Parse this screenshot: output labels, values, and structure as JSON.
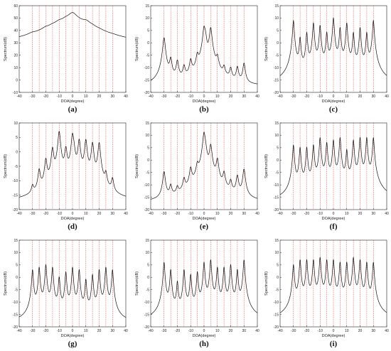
{
  "figure": {
    "xlabel": "DOA(degree)",
    "ylabel": "Spectrum(dB)",
    "true_doas": [
      -30,
      -25,
      -20,
      -15,
      -10,
      -5,
      0,
      5,
      10,
      15,
      20,
      25,
      30
    ]
  },
  "chart_data": [
    {
      "label": "(a)",
      "type": "line",
      "xlim": [
        -40,
        40
      ],
      "ylim": [
        -10,
        60
      ],
      "xticks": [
        -40,
        -30,
        -20,
        -10,
        0,
        10,
        20,
        30,
        40
      ],
      "yticks": [
        -10,
        0,
        10,
        20,
        30,
        40,
        50,
        60
      ],
      "baseline": -10,
      "peak_width": 3.2,
      "peaks": [
        {
          "x": -30,
          "y": 32
        },
        {
          "x": -25,
          "y": 27
        },
        {
          "x": -20,
          "y": 38
        },
        {
          "x": -15,
          "y": 40
        },
        {
          "x": -10,
          "y": 45
        },
        {
          "x": -5,
          "y": 47
        },
        {
          "x": 0,
          "y": 54
        },
        {
          "x": 5,
          "y": 43
        },
        {
          "x": 10,
          "y": 46
        },
        {
          "x": 15,
          "y": 38
        },
        {
          "x": 20,
          "y": 33
        },
        {
          "x": 25,
          "y": 26
        },
        {
          "x": 30,
          "y": 26
        }
      ]
    },
    {
      "label": "(b)",
      "type": "line",
      "xlim": [
        -40,
        40
      ],
      "ylim": [
        -20,
        15
      ],
      "xticks": [
        -40,
        -30,
        -20,
        -10,
        0,
        10,
        20,
        30,
        40
      ],
      "yticks": [
        -20,
        -15,
        -10,
        -5,
        0,
        5,
        10,
        15
      ],
      "baseline": -18,
      "peak_width": 0.8,
      "peaks": [
        {
          "x": -30,
          "y": 2
        },
        {
          "x": -25,
          "y": -7
        },
        {
          "x": -20,
          "y": -8
        },
        {
          "x": -15,
          "y": -11
        },
        {
          "x": -10,
          "y": -8
        },
        {
          "x": -5,
          "y": -6
        },
        {
          "x": 0,
          "y": 6
        },
        {
          "x": 1,
          "y": 2
        },
        {
          "x": 5,
          "y": 6
        },
        {
          "x": 10,
          "y": -7
        },
        {
          "x": 15,
          "y": -12
        },
        {
          "x": 20,
          "y": -12
        },
        {
          "x": 25,
          "y": -11
        },
        {
          "x": 30,
          "y": -9
        }
      ]
    },
    {
      "label": "(c)",
      "type": "line",
      "xlim": [
        -40,
        40
      ],
      "ylim": [
        -20,
        15
      ],
      "xticks": [
        -40,
        -30,
        -20,
        -10,
        0,
        10,
        20,
        30,
        40
      ],
      "yticks": [
        -20,
        -15,
        -10,
        -5,
        0,
        5,
        10,
        15
      ],
      "baseline": -18,
      "peak_width": 0.5,
      "peaks": [
        {
          "x": -30,
          "y": 9
        },
        {
          "x": -25,
          "y": 2
        },
        {
          "x": -20,
          "y": 4
        },
        {
          "x": -15,
          "y": 8
        },
        {
          "x": -10,
          "y": 7
        },
        {
          "x": -5,
          "y": 4
        },
        {
          "x": 0,
          "y": 10
        },
        {
          "x": 5,
          "y": 6
        },
        {
          "x": 10,
          "y": 8
        },
        {
          "x": 15,
          "y": 4
        },
        {
          "x": 20,
          "y": 6
        },
        {
          "x": 25,
          "y": 4
        },
        {
          "x": 30,
          "y": 9
        }
      ]
    },
    {
      "label": "(d)",
      "type": "line",
      "xlim": [
        -40,
        40
      ],
      "ylim": [
        -20,
        10
      ],
      "xticks": [
        -40,
        -30,
        -20,
        -10,
        0,
        10,
        20,
        30,
        40
      ],
      "yticks": [
        -20,
        -15,
        -10,
        -5,
        0,
        5,
        10
      ],
      "baseline": -18,
      "peak_width": 0.8,
      "peaks": [
        {
          "x": -30,
          "y": -15
        },
        {
          "x": -25,
          "y": -7
        },
        {
          "x": -20,
          "y": -3
        },
        {
          "x": -15,
          "y": 1
        },
        {
          "x": -10,
          "y": 7
        },
        {
          "x": -5,
          "y": 1
        },
        {
          "x": 0,
          "y": 6
        },
        {
          "x": 1,
          "y": -1
        },
        {
          "x": 5,
          "y": 4
        },
        {
          "x": 10,
          "y": 4
        },
        {
          "x": 15,
          "y": 3
        },
        {
          "x": 20,
          "y": 3
        },
        {
          "x": 25,
          "y": -9
        },
        {
          "x": 30,
          "y": -11
        }
      ]
    },
    {
      "label": "(e)",
      "type": "line",
      "xlim": [
        -40,
        40
      ],
      "ylim": [
        -20,
        15
      ],
      "xticks": [
        -40,
        -30,
        -20,
        -10,
        0,
        10,
        20,
        30,
        40
      ],
      "yticks": [
        -20,
        -15,
        -10,
        -5,
        0,
        5,
        10,
        15
      ],
      "baseline": -18,
      "peak_width": 0.8,
      "peaks": [
        {
          "x": -30,
          "y": -5
        },
        {
          "x": -25,
          "y": -12
        },
        {
          "x": -20,
          "y": -14
        },
        {
          "x": -15,
          "y": -9
        },
        {
          "x": -10,
          "y": -4
        },
        {
          "x": -5,
          "y": -3
        },
        {
          "x": 0,
          "y": 11
        },
        {
          "x": 1,
          "y": 3
        },
        {
          "x": 5,
          "y": 6
        },
        {
          "x": 10,
          "y": 0
        },
        {
          "x": 15,
          "y": -6
        },
        {
          "x": 20,
          "y": -10
        },
        {
          "x": 25,
          "y": -7
        },
        {
          "x": 30,
          "y": -4
        }
      ]
    },
    {
      "label": "(f)",
      "type": "line",
      "xlim": [
        -40,
        40
      ],
      "ylim": [
        -20,
        15
      ],
      "xticks": [
        -40,
        -30,
        -20,
        -10,
        0,
        10,
        20,
        30,
        40
      ],
      "yticks": [
        -20,
        -15,
        -10,
        -5,
        0,
        5,
        10,
        15
      ],
      "baseline": -18,
      "peak_width": 0.5,
      "peaks": [
        {
          "x": -30,
          "y": 6
        },
        {
          "x": -25,
          "y": 5
        },
        {
          "x": -20,
          "y": 5
        },
        {
          "x": -15,
          "y": 6
        },
        {
          "x": -10,
          "y": 9
        },
        {
          "x": -5,
          "y": 7
        },
        {
          "x": 0,
          "y": 8
        },
        {
          "x": 5,
          "y": 9
        },
        {
          "x": 10,
          "y": 4
        },
        {
          "x": 15,
          "y": 8
        },
        {
          "x": 20,
          "y": 9
        },
        {
          "x": 25,
          "y": 9
        },
        {
          "x": 30,
          "y": 9
        }
      ]
    },
    {
      "label": "(g)",
      "type": "line",
      "xlim": [
        -40,
        40
      ],
      "ylim": [
        -20,
        15
      ],
      "xticks": [
        -40,
        -30,
        -20,
        -10,
        0,
        10,
        20,
        30,
        40
      ],
      "yticks": [
        -20,
        -15,
        -10,
        -5,
        0,
        5,
        10,
        15
      ],
      "baseline": -19,
      "peak_width": 0.5,
      "peaks": [
        {
          "x": -30,
          "y": 3
        },
        {
          "x": -25,
          "y": 4
        },
        {
          "x": -20,
          "y": 5
        },
        {
          "x": -15,
          "y": 4
        },
        {
          "x": -10,
          "y": 0
        },
        {
          "x": -5,
          "y": 2
        },
        {
          "x": 0,
          "y": 4
        },
        {
          "x": 5,
          "y": 3
        },
        {
          "x": 10,
          "y": -1
        },
        {
          "x": 15,
          "y": 1
        },
        {
          "x": 20,
          "y": 3
        },
        {
          "x": 25,
          "y": 4
        },
        {
          "x": 30,
          "y": 3
        }
      ]
    },
    {
      "label": "(h)",
      "type": "line",
      "xlim": [
        -40,
        40
      ],
      "ylim": [
        -20,
        15
      ],
      "xticks": [
        -40,
        -30,
        -20,
        -10,
        0,
        10,
        20,
        30,
        40
      ],
      "yticks": [
        -20,
        -15,
        -10,
        -5,
        0,
        5,
        10,
        15
      ],
      "baseline": -18,
      "peak_width": 0.5,
      "peaks": [
        {
          "x": -30,
          "y": 6
        },
        {
          "x": -25,
          "y": 3
        },
        {
          "x": -20,
          "y": -2
        },
        {
          "x": -15,
          "y": 3
        },
        {
          "x": -10,
          "y": 1
        },
        {
          "x": -5,
          "y": 2
        },
        {
          "x": 0,
          "y": 6
        },
        {
          "x": 5,
          "y": 7
        },
        {
          "x": 10,
          "y": 4
        },
        {
          "x": 15,
          "y": 4
        },
        {
          "x": 20,
          "y": 5
        },
        {
          "x": 25,
          "y": 3
        },
        {
          "x": 30,
          "y": 7
        }
      ]
    },
    {
      "label": "(i)",
      "type": "line",
      "xlim": [
        -40,
        40
      ],
      "ylim": [
        -20,
        15
      ],
      "xticks": [
        -40,
        -30,
        -20,
        -10,
        0,
        10,
        20,
        30,
        40
      ],
      "yticks": [
        -20,
        -15,
        -10,
        -5,
        0,
        5,
        10,
        15
      ],
      "baseline": -19,
      "peak_width": 0.5,
      "peaks": [
        {
          "x": -30,
          "y": 5
        },
        {
          "x": -25,
          "y": 7
        },
        {
          "x": -20,
          "y": 7
        },
        {
          "x": -15,
          "y": 7
        },
        {
          "x": -10,
          "y": 8
        },
        {
          "x": -5,
          "y": 7
        },
        {
          "x": 0,
          "y": 7
        },
        {
          "x": 5,
          "y": 6
        },
        {
          "x": 10,
          "y": 6
        },
        {
          "x": 15,
          "y": 8
        },
        {
          "x": 20,
          "y": 7
        },
        {
          "x": 25,
          "y": 6
        },
        {
          "x": 30,
          "y": 6
        }
      ]
    }
  ]
}
